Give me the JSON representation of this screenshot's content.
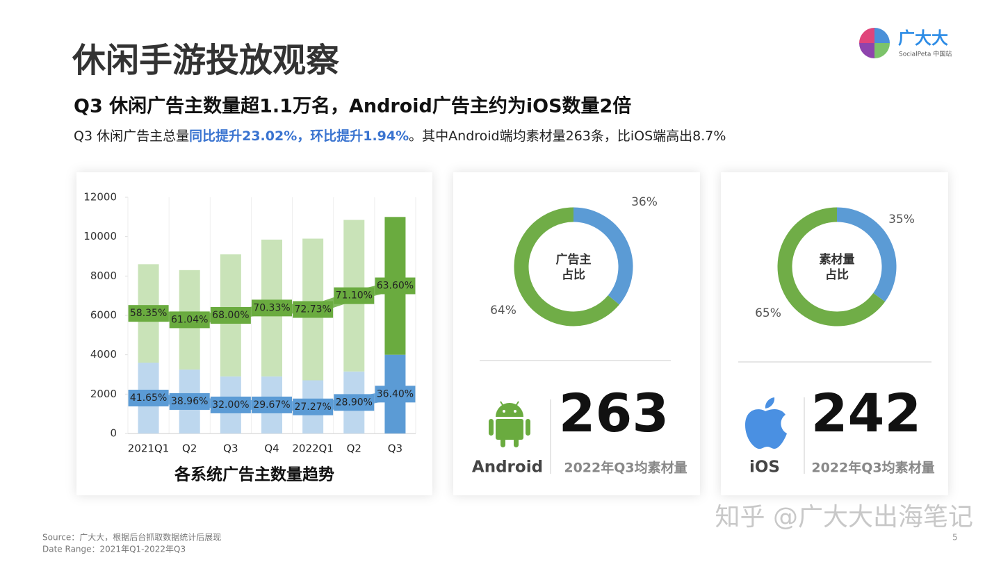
{
  "header": {
    "title": "休闲手游投放观察",
    "headline": "Q3 休闲广告主数量超1.1万名，Android广告主约为iOS数量2倍",
    "summary": [
      "Q3 休闲广告主总量",
      "同比提升23.02%，环比提升1.94%",
      "。其中Android端均素材量263条，比iOS端高出8.7%"
    ],
    "logo": "广大大",
    "logo_sub": "SocialPeta 中国站"
  },
  "chart_data": [
    {
      "type": "stacked-bar",
      "title": "各系统广告主数量趋势",
      "categories": [
        "2021Q1",
        "Q2",
        "Q3",
        "Q4",
        "2022Q1",
        "Q2",
        "Q3"
      ],
      "series": [
        {
          "name": "iOS",
          "color": "#5b9bd5",
          "light_color": "#bdd7ee",
          "values": [
            3600,
            3250,
            2900,
            2900,
            2700,
            3150,
            4000
          ],
          "value_labels": [
            "41.65%",
            "38.96%",
            "32.00%",
            "29.67%",
            "27.27%",
            "28.90%",
            "36.40%"
          ]
        },
        {
          "name": "Android",
          "color": "#6aab3f",
          "light_color": "#c9e3b8",
          "values": [
            5000,
            5050,
            6200,
            6950,
            7200,
            7700,
            7000
          ],
          "value_labels": [
            "58.35%",
            "61.04%",
            "68.00%",
            "70.33%",
            "72.73%",
            "71.10%",
            "63.60%"
          ]
        }
      ],
      "ylim": [
        0,
        12000
      ],
      "yticks": [
        0,
        2000,
        4000,
        6000,
        8000,
        10000,
        12000
      ]
    },
    {
      "type": "donut",
      "center_label": [
        "广告主",
        "占比"
      ],
      "categories": [
        "iOS",
        "Android"
      ],
      "values": [
        36,
        64
      ],
      "value_labels": [
        "36%",
        "64%"
      ],
      "colors": [
        "#5b9bd5",
        "#70ad47"
      ]
    },
    {
      "type": "donut",
      "center_label": [
        "素材量",
        "占比"
      ],
      "categories": [
        "iOS",
        "Android"
      ],
      "values": [
        35,
        65
      ],
      "value_labels": [
        "35%",
        "65%"
      ],
      "colors": [
        "#5b9bd5",
        "#70ad47"
      ]
    }
  ],
  "stats": [
    {
      "platform": "Android",
      "value": 263,
      "caption": "2022年Q3均素材量"
    },
    {
      "platform": "iOS",
      "value": 242,
      "caption": "2022年Q3均素材量"
    }
  ],
  "footer": {
    "source": "Source：广大大，根据后台抓取数据统计后展现",
    "date_range": "Date Range：2021年Q1-2022年Q3",
    "page": "5",
    "watermark": "知乎 @广大大出海笔记"
  }
}
